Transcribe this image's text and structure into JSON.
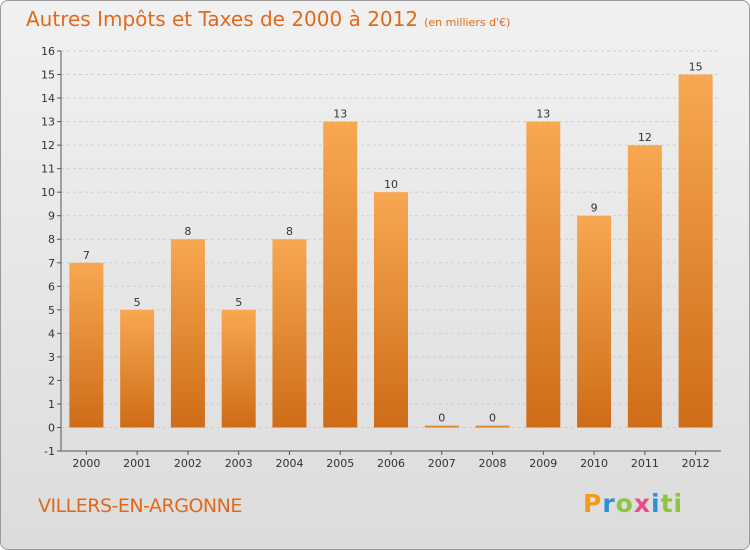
{
  "header": {
    "title": "Autres Impôts et Taxes de 2000 à 2012",
    "subtitle": "(en milliers d'€)"
  },
  "footer": {
    "city": "VILLERS-EN-ARGONNE",
    "brand": [
      "P",
      "r",
      "o",
      "x",
      "i",
      "ti"
    ]
  },
  "colors": {
    "title": "#e2691a",
    "bar_light": "#f7a851",
    "bar_dark": "#cf6c17"
  },
  "chart_data": {
    "type": "bar",
    "title": "Autres Impôts et Taxes de 2000 à 2012",
    "subtitle": "(en milliers d'€)",
    "categories": [
      "2000",
      "2001",
      "2002",
      "2003",
      "2004",
      "2005",
      "2006",
      "2007",
      "2008",
      "2009",
      "2010",
      "2011",
      "2012"
    ],
    "values": [
      7,
      5,
      8,
      5,
      8,
      13,
      10,
      0,
      0,
      13,
      9,
      12,
      15
    ],
    "ylim": [
      -1,
      16
    ],
    "yticks": [
      "-1",
      "0",
      "1",
      "2",
      "3",
      "4",
      "5",
      "6",
      "7",
      "8",
      "9",
      "10",
      "11",
      "12",
      "13",
      "14",
      "15",
      "16"
    ],
    "grid": true,
    "xlabel": "",
    "ylabel": ""
  }
}
